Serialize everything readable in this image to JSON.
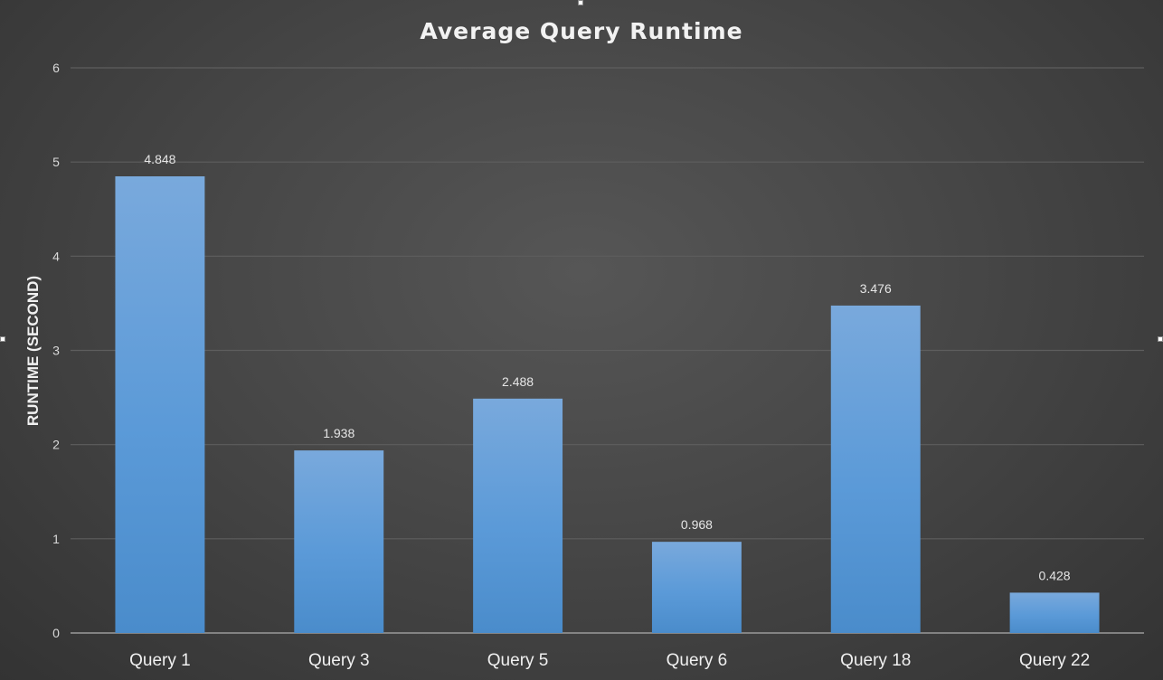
{
  "chart_data": {
    "type": "bar",
    "title": "Average Query Runtime",
    "xlabel": "",
    "ylabel": "RUNTIME (SECOND)",
    "categories": [
      "Query 1",
      "Query 3",
      "Query 5",
      "Query 6",
      "Query 18",
      "Query 22"
    ],
    "values": [
      4.848,
      1.938,
      2.488,
      0.968,
      3.476,
      0.428
    ],
    "data_labels": [
      "4.848",
      "1.938",
      "2.488",
      "0.968",
      "3.476",
      "0.428"
    ],
    "ylim": [
      0,
      6
    ],
    "yticks": [
      "0",
      "1",
      "2",
      "3",
      "4",
      "5",
      "6"
    ],
    "grid": true,
    "legend": "none",
    "bar_color_top": "#79a9dc",
    "bar_color_bottom": "#4a8ccb",
    "gridline_color": "#5e5e5e"
  }
}
